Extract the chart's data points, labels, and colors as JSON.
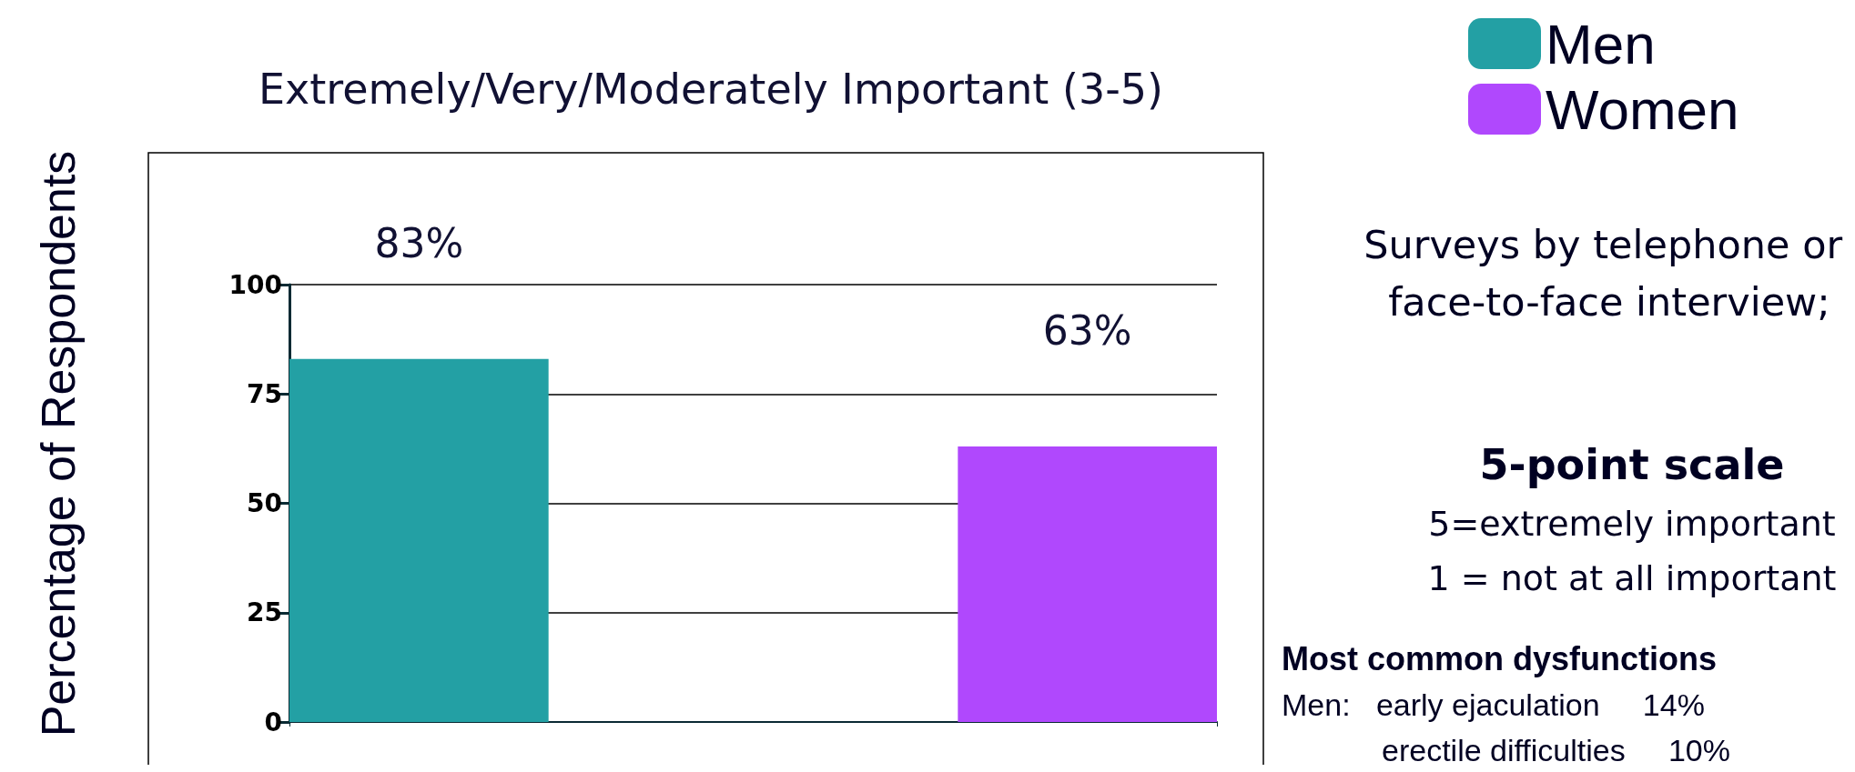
{
  "chart_data": {
    "type": "bar",
    "title": "Extremely/Very/Moderately Important (3-5)",
    "ylabel": "Percentage of Respondents",
    "categories": [
      null
    ],
    "series": [
      {
        "name": "Men",
        "color": "#23a0a4",
        "values": [
          83
        ],
        "value_labels": [
          "83%"
        ]
      },
      {
        "name": "Women",
        "color": "#b048fd",
        "values": [
          63
        ],
        "value_labels": [
          "63%"
        ]
      }
    ],
    "ylim": [
      0,
      100
    ],
    "yticks": [
      0,
      25,
      50,
      75,
      100
    ],
    "grid": "y",
    "legend": "top right",
    "annotations": [
      "Surveys by telephone or face-to-face interview;",
      "5-point scale",
      "5=extremely important",
      "1 = not at all important",
      "Most common dysfunctions",
      "Men:   early ejaculation     14%",
      "erectile difficulties     10%"
    ]
  }
}
